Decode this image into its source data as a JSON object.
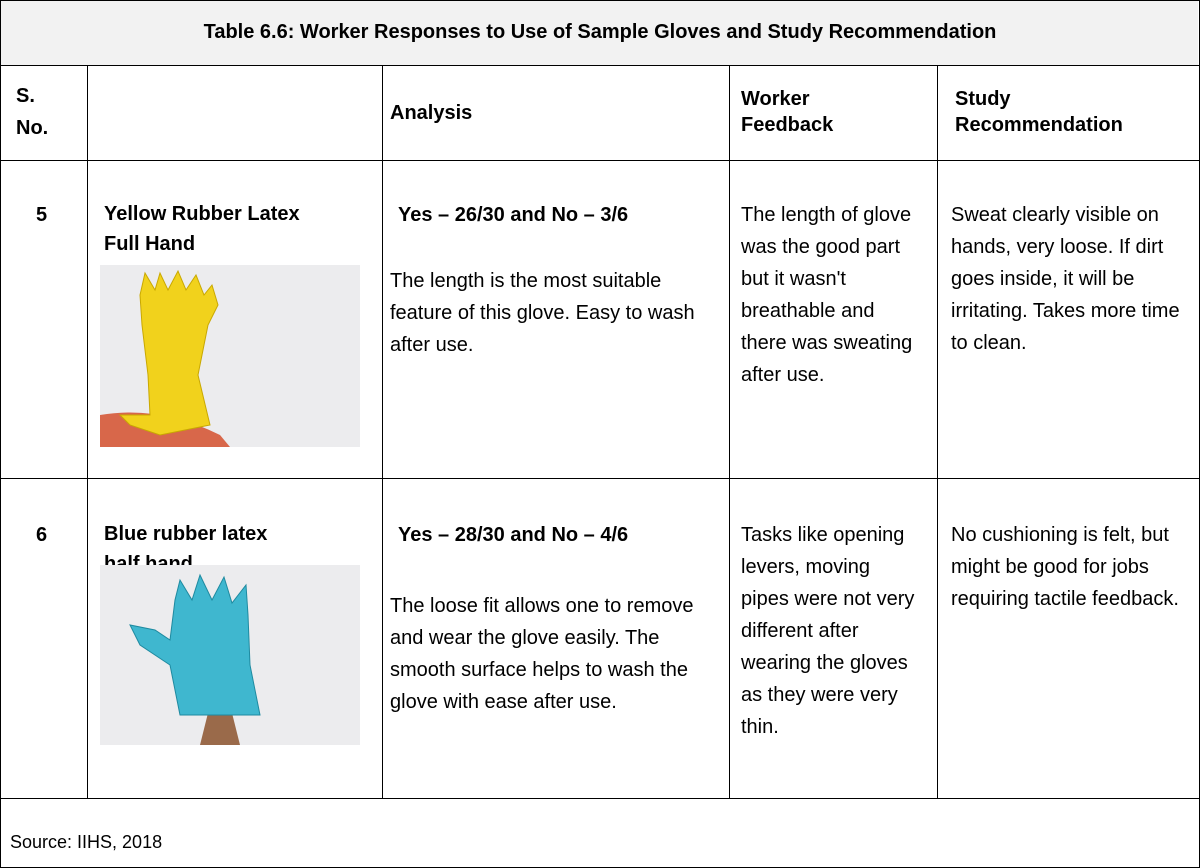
{
  "table": {
    "title": "Table 6.6: Worker Responses to Use of Sample Gloves and Study Recommendation",
    "header": {
      "s_no": "S. No.",
      "analysis": "Analysis",
      "worker_feedback": "Worker Feedback",
      "study_recommendation": "Study Recommendation"
    },
    "rows": [
      {
        "s_no": "5",
        "name": "Yellow Rubber Latex Full Hand",
        "analysis_heading": "Yes – 26/30 and No – 3/6",
        "analysis": "The length is the most suitable feature of this glove.  Easy to wash after use.",
        "worker_feedback": "The length of glove was the good part but it wasn't breathable and there was sweating after use.",
        "study_recommendation": "Sweat clearly visible on hands, very loose. If dirt goes inside, it will be irritating. Takes more time to clean."
      },
      {
        "s_no": "6",
        "name": "Blue rubber latex half hand",
        "analysis_heading": "Yes – 28/30 and No – 4/6",
        "analysis": "The loose fit allows one to remove and wear the glove easily. The smooth surface helps to wash the glove with ease after use.",
        "worker_feedback": "Tasks like opening levers, moving pipes were not very different after wearing the gloves as they were very thin.",
        "study_recommendation": "No cushioning is felt, but might be good for jobs requiring tactile feedback."
      }
    ],
    "source": "Source: IIHS, 2018"
  }
}
